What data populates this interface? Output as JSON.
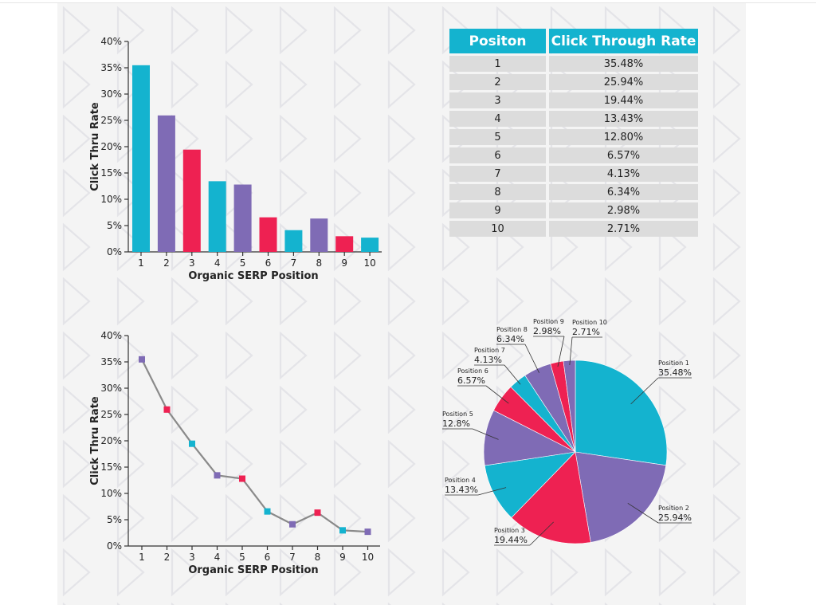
{
  "colors": {
    "teal": "#14b3cf",
    "purple": "#7f6bb5",
    "crimson": "#ee2152",
    "line": "#8a8a8a",
    "table_header": "#14b3cf",
    "table_cell": "#dcdcdc"
  },
  "chart_data": [
    {
      "type": "bar",
      "title": "",
      "xlabel": "Organic SERP Position",
      "ylabel": "Click Thru Rate",
      "categories": [
        "1",
        "2",
        "3",
        "4",
        "5",
        "6",
        "7",
        "8",
        "9",
        "10"
      ],
      "values": [
        35.48,
        25.94,
        19.44,
        13.43,
        12.8,
        6.57,
        4.13,
        6.34,
        2.98,
        2.71
      ],
      "bar_colors": [
        "#14b3cf",
        "#7f6bb5",
        "#ee2152",
        "#14b3cf",
        "#7f6bb5",
        "#ee2152",
        "#14b3cf",
        "#7f6bb5",
        "#ee2152",
        "#14b3cf"
      ],
      "ylim": [
        0,
        40
      ],
      "yticks": [
        "0%",
        "5%",
        "10%",
        "15%",
        "20%",
        "25%",
        "30%",
        "35%",
        "40%"
      ]
    },
    {
      "type": "line",
      "title": "",
      "xlabel": "Organic SERP Position",
      "ylabel": "Click Thru Rate",
      "x": [
        "1",
        "2",
        "3",
        "4",
        "5",
        "6",
        "7",
        "8",
        "9",
        "10"
      ],
      "values": [
        35.48,
        25.94,
        19.44,
        13.43,
        12.8,
        6.57,
        4.13,
        6.34,
        2.98,
        2.71
      ],
      "marker_colors": [
        "#7f6bb5",
        "#ee2152",
        "#14b3cf",
        "#7f6bb5",
        "#ee2152",
        "#14b3cf",
        "#7f6bb5",
        "#ee2152",
        "#14b3cf",
        "#7f6bb5"
      ],
      "ylim": [
        0,
        40
      ],
      "yticks": [
        "0%",
        "5%",
        "10%",
        "15%",
        "20%",
        "25%",
        "30%",
        "35%",
        "40%"
      ]
    },
    {
      "type": "table",
      "columns": [
        "Positon",
        "Click Through Rate"
      ],
      "rows": [
        [
          "1",
          "35.48%"
        ],
        [
          "2",
          "25.94%"
        ],
        [
          "3",
          "19.44%"
        ],
        [
          "4",
          "13.43%"
        ],
        [
          "5",
          "12.80%"
        ],
        [
          "6",
          "6.57%"
        ],
        [
          "7",
          "4.13%"
        ],
        [
          "8",
          "6.34%"
        ],
        [
          "9",
          "2.98%"
        ],
        [
          "10",
          "2.71%"
        ]
      ]
    },
    {
      "type": "pie",
      "slices": [
        {
          "name": "Position 1",
          "label": "35.48%",
          "value": 35.48,
          "color": "#14b3cf"
        },
        {
          "name": "Position 2",
          "label": "25.94%",
          "value": 25.94,
          "color": "#7f6bb5"
        },
        {
          "name": "Position 3",
          "label": "19.44%",
          "value": 19.44,
          "color": "#ee2152"
        },
        {
          "name": "Position 4",
          "label": "13.43%",
          "value": 13.43,
          "color": "#14b3cf"
        },
        {
          "name": "Position 5",
          "label": "12.8%",
          "value": 12.8,
          "color": "#7f6bb5"
        },
        {
          "name": "Position 6",
          "label": "6.57%",
          "value": 6.57,
          "color": "#ee2152"
        },
        {
          "name": "Position 7",
          "label": "4.13%",
          "value": 4.13,
          "color": "#14b3cf"
        },
        {
          "name": "Position 8",
          "label": "6.34%",
          "value": 6.34,
          "color": "#7f6bb5"
        },
        {
          "name": "Position 9",
          "label": "2.98%",
          "value": 2.98,
          "color": "#ee2152"
        },
        {
          "name": "Position 10",
          "label": "2.71%",
          "value": 2.71,
          "color": "#7f6bb5"
        }
      ]
    }
  ]
}
